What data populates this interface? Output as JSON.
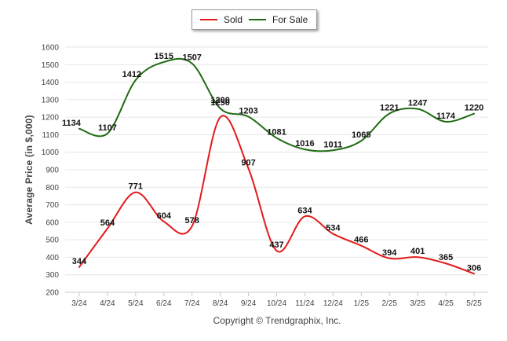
{
  "chart_data": {
    "type": "line",
    "ylabel": "Average Price (in $,000)",
    "xlabel": "",
    "ylim": [
      200,
      1600
    ],
    "yticks": [
      200,
      300,
      400,
      500,
      600,
      700,
      800,
      900,
      1000,
      1100,
      1200,
      1300,
      1400,
      1500,
      1600
    ],
    "grid": "horizontal",
    "legend_position": "top-center",
    "categories": [
      "3/24",
      "4/24",
      "5/24",
      "6/24",
      "7/24",
      "8/24",
      "9/24",
      "10/24",
      "11/24",
      "12/24",
      "1/25",
      "2/25",
      "3/25",
      "4/25",
      "5/25"
    ],
    "series": [
      {
        "name": "Sold",
        "color": "#e31a1c",
        "values": [
          344,
          564,
          771,
          604,
          578,
          1200,
          907,
          437,
          634,
          534,
          466,
          394,
          401,
          365,
          306
        ]
      },
      {
        "name": "For Sale",
        "color": "#1f6b12",
        "values": [
          1134,
          1107,
          1412,
          1515,
          1507,
          1250,
          1203,
          1081,
          1016,
          1011,
          1065,
          1221,
          1247,
          1174,
          1220
        ]
      }
    ]
  },
  "footer": "Copyright © Trendgraphix, Inc."
}
